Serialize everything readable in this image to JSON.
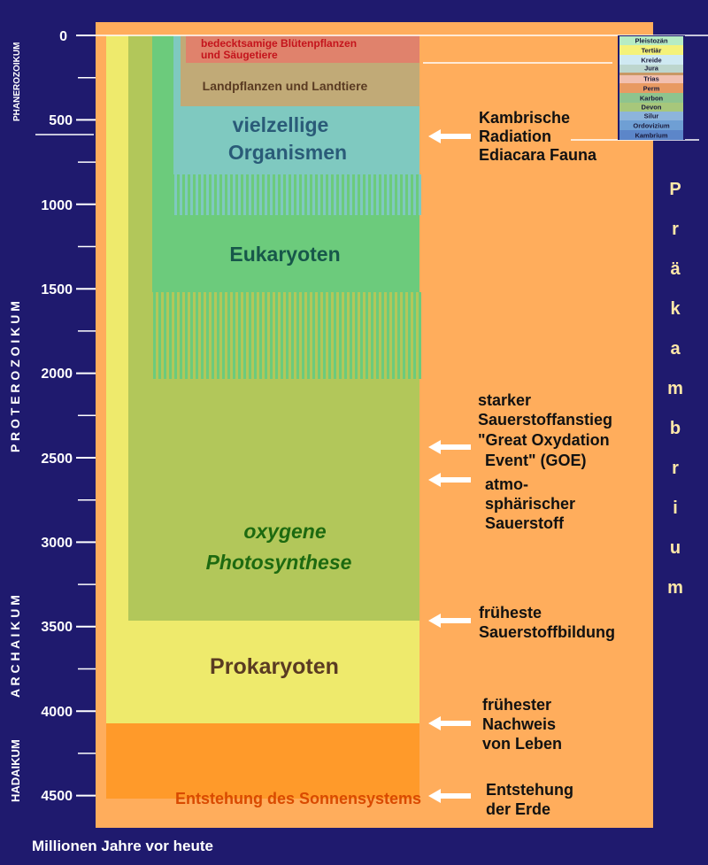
{
  "axis": {
    "title": "Millionen Jahre vor heute",
    "ticks": [
      "0",
      "500",
      "1000",
      "1500",
      "2000",
      "2500",
      "3000",
      "3500",
      "4000",
      "4500"
    ]
  },
  "eras": {
    "phanerozoikum": "PHANEROZOIKUM",
    "proterozoikum": "P R O T E R O Z O I K U M",
    "archaikum": "A R C H A I K U M",
    "hadaikum": "HADAIKUM",
    "praekambrium": "P r ä k a m b r i u m"
  },
  "blocks": {
    "sonnensystem": "Entstehung des Sonnensystems",
    "prokaryoten": "Prokaryoten",
    "photosynthese_1": "oxygene",
    "photosynthese_2": "Photosynthese",
    "eukaryoten": "Eukaryoten",
    "vielzellige_1": "vielzellige",
    "vielzellige_2": "Organismen",
    "landpflanzen": "Landpflanzen und Landtiere",
    "bluetenpflanzen_1": "bedecktsamige Blütenpflanzen",
    "bluetenpflanzen_2": "und Säugetiere"
  },
  "annotations": [
    {
      "lines": [
        "Kambrische",
        "Radiation",
        "Ediacara Fauna"
      ]
    },
    {
      "lines": [
        "starker",
        "Sauerstoffanstieg",
        "\"Great Oxydation",
        "Event\" (GOE)"
      ]
    },
    {
      "lines": [
        "atmo-",
        "sphärischer",
        "Sauerstoff"
      ]
    },
    {
      "lines": [
        "früheste",
        "Sauerstoffbildung"
      ]
    },
    {
      "lines": [
        "frühester",
        "Nachweis",
        "von Leben"
      ]
    },
    {
      "lines": [
        "Entstehung",
        "der Erde"
      ]
    }
  ],
  "periods": [
    "Pleistozän",
    "Tertiär",
    "Kreide",
    "Jura",
    "Trias",
    "Perm",
    "Karbon",
    "Devon",
    "Silur",
    "Ordovizium",
    "Kambrium"
  ],
  "colors": {
    "background": "#1f1a6e",
    "panel": "#ffad5c",
    "sonnensystem": "#ff9a2a",
    "prokaryoten": "#eeea6c",
    "photosynthese": "#b2c75a",
    "eukaryoten": "#6ccb7c",
    "vielzellige": "#7fc9c0",
    "landpflanzen": "#c1aa77",
    "bluetenpflanzen": "#e0826c"
  }
}
